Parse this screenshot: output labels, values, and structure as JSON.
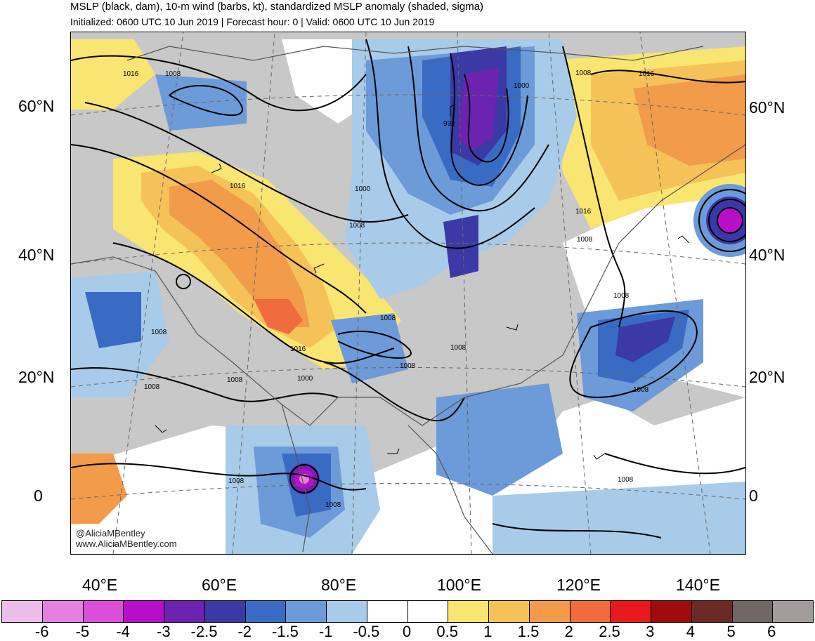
{
  "title": "MSLP (black, dam), 10-m wind (barbs, kt), standardized MSLP anomaly (shaded, sigma)",
  "subtitle": "Initialized: 0600 UTC 10 Jun 2019 | Forecast hour: 0 | Valid: 0600 UTC 10 Jun 2019",
  "credit": {
    "handle": "@AliciaMBentley",
    "url": "www.AliciaMBentley.com"
  },
  "latitude_labels": [
    "60°N",
    "40°N",
    "20°N",
    "0"
  ],
  "longitude_labels": [
    "40°E",
    "60°E",
    "80°E",
    "100°E",
    "120°E",
    "140°E"
  ],
  "isobar_labels": [
    "1016",
    "1008",
    "1000",
    "992",
    "1008",
    "1016",
    "1000",
    "1008",
    "1016",
    "1008",
    "1016",
    "1008",
    "1008",
    "1008",
    "1016",
    "1008",
    "1008",
    "1008",
    "1000",
    "1008",
    "1008",
    "1008",
    "1008",
    "1008"
  ],
  "colorbar": {
    "labels": [
      "-6",
      "-5",
      "-4",
      "-3",
      "-2.5",
      "-2",
      "-1.5",
      "-1",
      "-0.5",
      "0",
      "0.5",
      "1",
      "1.5",
      "2",
      "2.5",
      "3",
      "4",
      "5",
      "6"
    ],
    "colors": [
      "#ebbde8",
      "#e57fe0",
      "#db4fd8",
      "#b70fc7",
      "#6b23b0",
      "#3a39a6",
      "#3a6bc4",
      "#6d9ad8",
      "#a8cbe9",
      "#ffffff",
      "#ffffff",
      "#f9e571",
      "#f5c259",
      "#f29b4a",
      "#f06b3e",
      "#e8181c",
      "#a00c0e",
      "#6c2a26",
      "#6f6665",
      "#a39c9c"
    ]
  }
}
